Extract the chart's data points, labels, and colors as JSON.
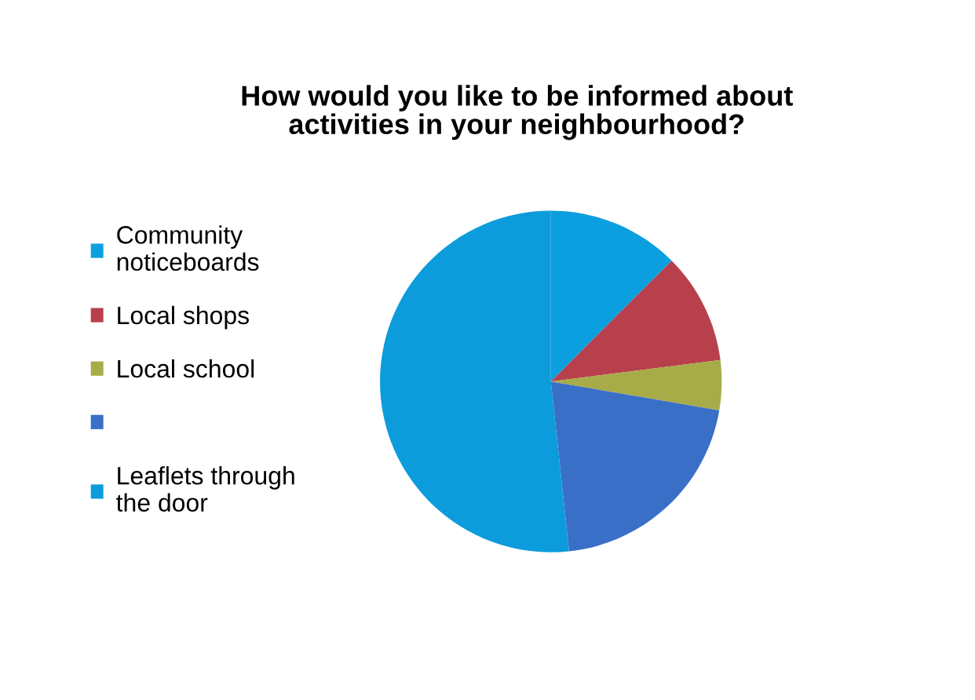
{
  "chart_data": {
    "type": "pie",
    "title": "How would you like to be informed about\nactivities in your neighbourhood?",
    "categories": [
      "Community\nnoticeboards",
      "Local shops",
      "Local school",
      null,
      "Leaflets through\nthe door"
    ],
    "values": [
      12.5,
      10.5,
      4.7,
      20.6,
      51.7
    ],
    "colors": [
      "#0c9fe0",
      "#b8404c",
      "#a8ac48",
      "#3a6fc8",
      "#0c9cdc"
    ],
    "legend": "left"
  }
}
